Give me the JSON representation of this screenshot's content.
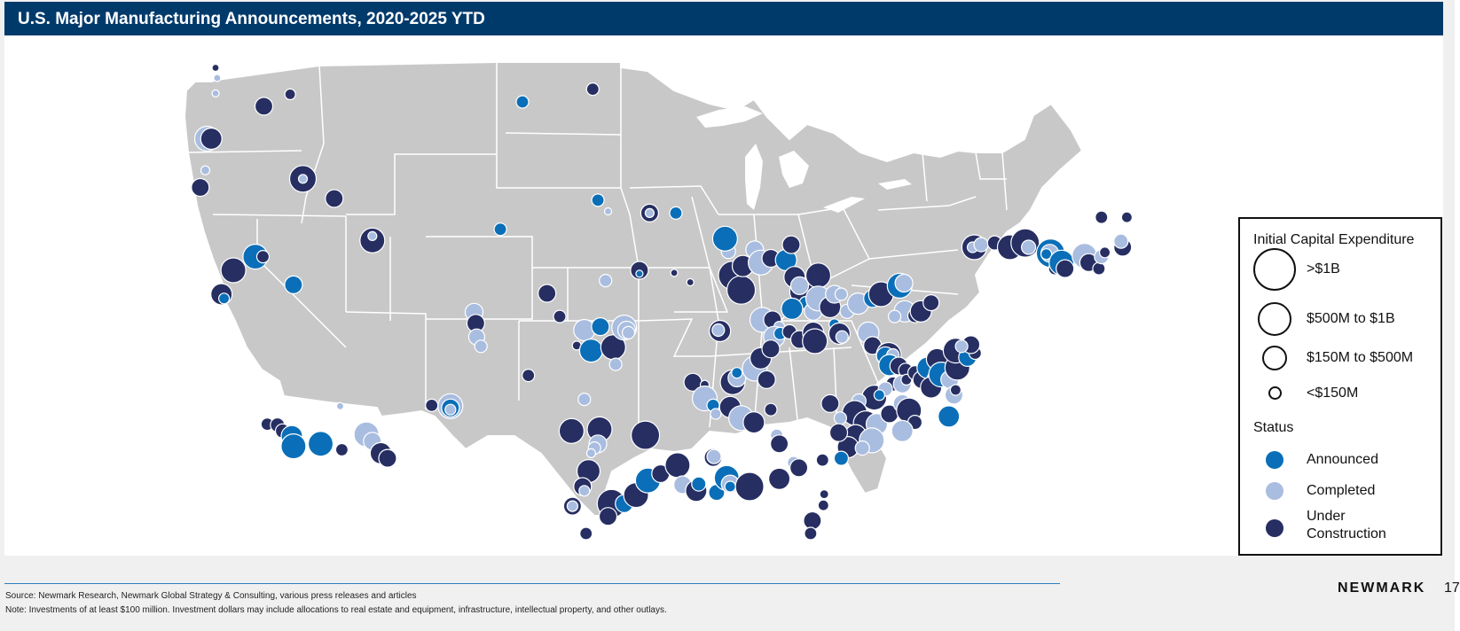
{
  "title": "U.S. Major Manufacturing Announcements, 2020-2025 YTD",
  "colors": {
    "header_bg": "#003a6b",
    "land": "#c8c8c8",
    "border": "#ffffff",
    "announced": "#0a6fb8",
    "completed": "#a9bde0",
    "under_construction": "#262e62"
  },
  "legend": {
    "capex_title": "Initial Capital Expenditure",
    "capex_items": [
      {
        "label": ">$1B",
        "size": "xl"
      },
      {
        "label": "$500M to $1B",
        "size": "l"
      },
      {
        "label": "$150M to $500M",
        "size": "m"
      },
      {
        "label": "<$150M",
        "size": "s"
      }
    ],
    "status_title": "Status",
    "status_items": [
      {
        "label": "Announced",
        "key": "announced"
      },
      {
        "label": "Completed",
        "key": "completed"
      },
      {
        "label": "Under",
        "label2": "Construction",
        "key": "under_construction"
      }
    ]
  },
  "footer": {
    "source": "Source: Newmark Research, Newmark Global Strategy & Consulting, various press releases and articles",
    "note": "Note: Investments of at least $100 million. Investment dollars may include allocations to real estate and equipment, infrastructure, intellectual property, and other outlays.",
    "brand": "NEWMARK",
    "page": "17"
  }
}
